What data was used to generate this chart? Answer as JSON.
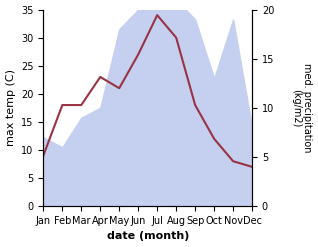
{
  "months": [
    "Jan",
    "Feb",
    "Mar",
    "Apr",
    "May",
    "Jun",
    "Jul",
    "Aug",
    "Sep",
    "Oct",
    "Nov",
    "Dec"
  ],
  "temperature": [
    9,
    18,
    18,
    23,
    21,
    27,
    34,
    30,
    18,
    12,
    8,
    7
  ],
  "precipitation": [
    7,
    6,
    9,
    10,
    18,
    20,
    20,
    21,
    19,
    13,
    19,
    8
  ],
  "temp_color": "#993344",
  "precip_color_fill": "#c5cff0",
  "title": "",
  "xlabel": "date (month)",
  "ylabel_left": "max temp (C)",
  "ylabel_right": "med. precipitation\n(kg/m2)",
  "ylim_left": [
    0,
    35
  ],
  "ylim_right": [
    0,
    20
  ],
  "yticks_left": [
    0,
    5,
    10,
    15,
    20,
    25,
    30,
    35
  ],
  "yticks_right": [
    0,
    5,
    10,
    15,
    20
  ]
}
